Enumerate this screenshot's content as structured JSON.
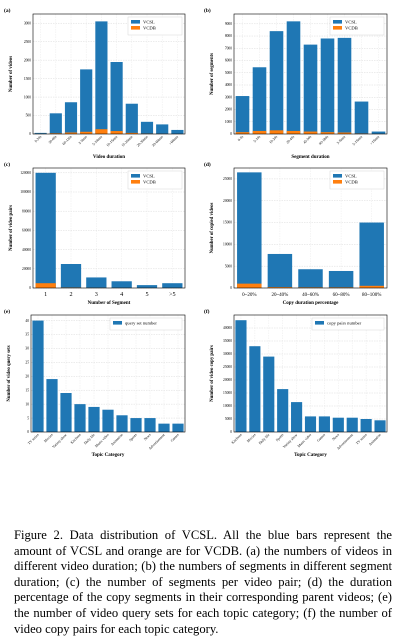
{
  "colors": {
    "vcsl": "#1f77b4",
    "vcdb": "#ff7f0e"
  },
  "caption": "Figure 2. Data distribution of VCSL. All the blue bars represent the amount of VCSL and orange are for VCDB. (a) the numbers of videos in different video duration; (b) the numbers of segments in different segment duration; (c) the number of segments per video pair; (d) the duration percentage of the copy segments in their corresponding parent videos; (e) the number of video query sets for each topic category; (f) the number of video copy pairs for each topic category.",
  "chart_data": [
    {
      "type": "bar",
      "panel": "(a)",
      "xlabel": "Video duration",
      "ylabel": "Number of videos",
      "categories": [
        "0-30s",
        "30-60s",
        "60-120s",
        "2-5min",
        "5-10min",
        "10-15min",
        "15-20min",
        "20-30min",
        "30-60min",
        ">60min"
      ],
      "series": [
        {
          "name": "VCSL",
          "values": [
            30,
            560,
            860,
            1750,
            3050,
            1950,
            820,
            330,
            260,
            110
          ]
        },
        {
          "name": "VCDB",
          "values": [
            5,
            20,
            40,
            60,
            130,
            80,
            30,
            10,
            5,
            2
          ]
        }
      ],
      "ylim": [
        0,
        3250
      ],
      "yticks": [
        0,
        500,
        1000,
        1500,
        2000,
        2500,
        3000
      ],
      "legend": "top-right",
      "grid": true
    },
    {
      "type": "bar",
      "panel": "(b)",
      "xlabel": "Segment duration",
      "ylabel": "Number of segments",
      "categories": [
        "0-5s",
        "5-10s",
        "10-20s",
        "20-45s",
        "45-90s",
        "90-180s",
        "3-5min",
        "5-15min",
        ">15min"
      ],
      "series": [
        {
          "name": "VCSL",
          "values": [
            3100,
            5450,
            8400,
            9200,
            7300,
            7800,
            7850,
            2650,
            200
          ]
        },
        {
          "name": "VCDB",
          "values": [
            150,
            250,
            300,
            250,
            200,
            150,
            120,
            40,
            5
          ]
        }
      ],
      "ylim": [
        0,
        9800
      ],
      "yticks": [
        0,
        1000,
        2000,
        3000,
        4000,
        5000,
        6000,
        7000,
        8000,
        9000
      ],
      "legend": "top-right",
      "grid": true
    },
    {
      "type": "bar",
      "panel": "(c)",
      "xlabel": "Number of Segment",
      "ylabel": "Number of video pairs",
      "categories": [
        "1",
        "2",
        "3",
        "4",
        "5",
        ">5"
      ],
      "series": [
        {
          "name": "VCSL",
          "values": [
            120000,
            25000,
            11000,
            7000,
            3000,
            5000
          ]
        },
        {
          "name": "VCDB",
          "values": [
            5000,
            500,
            200,
            100,
            50,
            50
          ]
        }
      ],
      "ylim": [
        0,
        125000
      ],
      "yticks": [
        0,
        20000,
        40000,
        60000,
        80000,
        100000,
        120000
      ],
      "legend": "top-right",
      "grid": true
    },
    {
      "type": "bar",
      "panel": "(d)",
      "xlabel": "Copy duration percentage",
      "ylabel": "Number of copied videos",
      "categories": [
        "0~20%",
        "20~40%",
        "40~60%",
        "60~80%",
        "80~100%"
      ],
      "series": [
        {
          "name": "VCSL",
          "values": [
            26500,
            7800,
            4300,
            3900,
            15000
          ]
        },
        {
          "name": "VCDB",
          "values": [
            1000,
            200,
            150,
            150,
            500
          ]
        }
      ],
      "ylim": [
        0,
        27500
      ],
      "yticks": [
        0,
        5000,
        10000,
        15000,
        20000,
        25000
      ],
      "legend": "top-right",
      "grid": true
    },
    {
      "type": "bar",
      "panel": "(e)",
      "xlabel": "Topic Category",
      "ylabel": "Number of video query sets",
      "categories": [
        "TV series",
        "Movies",
        "Variety show",
        "Kitchens",
        "Daily life",
        "Music video",
        "Animation",
        "Sports",
        "News",
        "Advertisement",
        "Games"
      ],
      "series": [
        {
          "name": "query set number",
          "values": [
            40,
            19,
            14,
            10,
            9,
            8,
            6,
            5,
            5,
            3,
            3
          ]
        }
      ],
      "ylim": [
        0,
        42
      ],
      "yticks": [
        0,
        5,
        10,
        15,
        20,
        25,
        30,
        35,
        40
      ],
      "legend": "top-right",
      "grid": true
    },
    {
      "type": "bar",
      "panel": "(f)",
      "xlabel": "Topic Category",
      "ylabel": "Number of video copy pairs",
      "categories": [
        "Kitchens",
        "Movies",
        "Daily life",
        "Sports",
        "Variety show",
        "Music video",
        "Games",
        "News",
        "Advertisement",
        "TV series",
        "Animation"
      ],
      "series": [
        {
          "name": "copy pairs number",
          "values": [
            43000,
            33000,
            29000,
            16500,
            11500,
            6000,
            6000,
            5500,
            5500,
            5000,
            4500
          ]
        }
      ],
      "ylim": [
        0,
        45000
      ],
      "yticks": [
        0,
        5000,
        10000,
        15000,
        20000,
        25000,
        30000,
        35000,
        40000
      ],
      "legend": "top-right",
      "grid": true
    }
  ]
}
